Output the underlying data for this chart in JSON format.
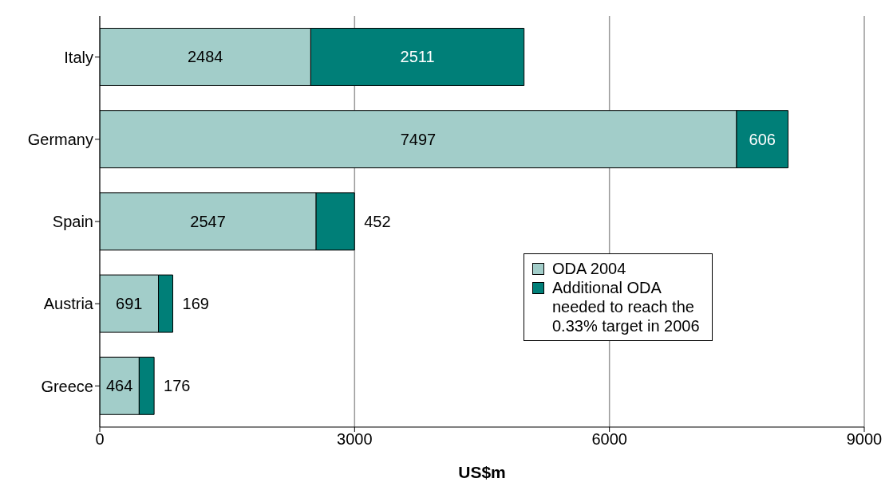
{
  "chart_data": {
    "type": "bar",
    "orientation": "horizontal",
    "stacked": true,
    "xlabel": "US$m",
    "categories": [
      "Italy",
      "Germany",
      "Spain",
      "Austria",
      "Greece"
    ],
    "series": [
      {
        "name": "ODA 2004",
        "color": "#a2cdc9",
        "values": [
          2484,
          7497,
          2547,
          691,
          464
        ]
      },
      {
        "name": "Additional ODA needed to reach the 0.33% target in 2006",
        "color": "#007f78",
        "values": [
          2511,
          606,
          452,
          169,
          176
        ]
      }
    ],
    "xlim": [
      0,
      9000
    ],
    "xticks": [
      0,
      3000,
      6000,
      9000
    ],
    "grid": "x",
    "legend": "right",
    "data_labels": true
  }
}
